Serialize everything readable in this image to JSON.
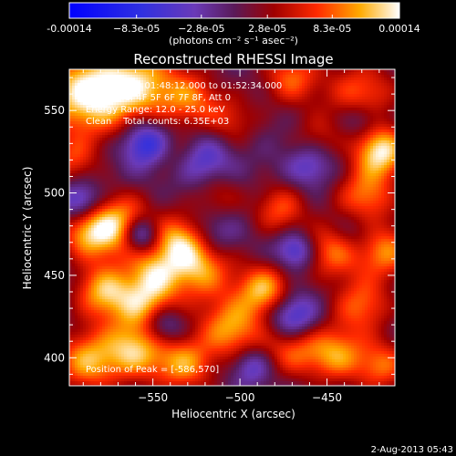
{
  "chart_data": {
    "type": "heatmap",
    "title": "Reconstructed RHESSI Image",
    "xlabel": "Heliocentric X (arcsec)",
    "ylabel": "Heliocentric Y (arcsec)",
    "xlim": [
      -598,
      -411
    ],
    "ylim": [
      383,
      575
    ],
    "x_ticks": [
      -550,
      -500,
      -450
    ],
    "y_ticks": [
      400,
      450,
      500,
      550
    ],
    "colorbar": {
      "unit_label": "(photons cm⁻² s⁻¹ asec⁻²)",
      "range": [
        -0.00014,
        0.00014
      ],
      "tick_labels": [
        "-0.00014",
        "−8.3e-05",
        "−2.8e-05",
        "2.8e-05",
        "8.3e-05",
        "0.00014"
      ],
      "tick_values": [
        -0.00014,
        -8.3e-05,
        -2.8e-05,
        2.8e-05,
        8.3e-05,
        0.00014
      ]
    },
    "annotations": {
      "time_range": "31-Jan-2010 01:48:12.000 to 01:52:34.000",
      "detectors": "Detectors: 4F 5F 6F 7F 8F, Att 0",
      "energy": "Energy Range: 12.0 - 25.0 keV",
      "clean": "Clean    Total counts: 6.35E+03",
      "peak": "Position of Peak = [-586,570]"
    },
    "peak": [
      -586,
      570
    ],
    "blobs": [
      [
        -588,
        560,
        18,
        1.0
      ],
      [
        -557,
        566,
        16,
        0.75
      ],
      [
        -528,
        557,
        12,
        0.55
      ],
      [
        -505,
        544,
        11,
        0.4
      ],
      [
        -470,
        570,
        12,
        0.6
      ],
      [
        -430,
        560,
        14,
        0.6
      ],
      [
        -419,
        525,
        11,
        0.95
      ],
      [
        -428,
        498,
        12,
        0.65
      ],
      [
        -417,
        465,
        12,
        0.7
      ],
      [
        -430,
        432,
        12,
        0.6
      ],
      [
        -418,
        395,
        11,
        0.6
      ],
      [
        -445,
        402,
        12,
        0.7
      ],
      [
        -447,
        465,
        12,
        0.65
      ],
      [
        -477,
        490,
        11,
        0.55
      ],
      [
        -486,
        441,
        11,
        0.8
      ],
      [
        -505,
        418,
        13,
        0.75
      ],
      [
        -470,
        405,
        12,
        0.55
      ],
      [
        -524,
        455,
        14,
        0.8
      ],
      [
        -536,
        472,
        11,
        0.65
      ],
      [
        -550,
        452,
        10,
        0.55
      ],
      [
        -553,
        432,
        12,
        0.75
      ],
      [
        -532,
        396,
        12,
        0.7
      ],
      [
        -560,
        405,
        13,
        0.8
      ],
      [
        -588,
        398,
        13,
        0.75
      ],
      [
        -578,
        440,
        12,
        0.8
      ],
      [
        -568,
        480,
        13,
        0.9
      ],
      [
        -588,
        475,
        11,
        0.65
      ],
      [
        -596,
        520,
        10,
        0.45
      ],
      [
        -540,
        525,
        10,
        0.3
      ],
      [
        -513,
        498,
        10,
        0.35
      ],
      [
        -455,
        535,
        10,
        0.3
      ],
      [
        -553,
        530,
        10,
        -0.7
      ],
      [
        -520,
        520,
        11,
        -0.4
      ],
      [
        -557,
        475,
        8,
        -0.8
      ],
      [
        -468,
        465,
        8,
        -0.55
      ],
      [
        -470,
        425,
        10,
        -0.6
      ],
      [
        -493,
        395,
        8,
        -0.4
      ],
      [
        -545,
        420,
        9,
        -0.6
      ],
      [
        -515,
        475,
        10,
        -0.35
      ],
      [
        -460,
        516,
        9,
        -0.35
      ],
      [
        -592,
        495,
        8,
        -0.5
      ],
      [
        -430,
        545,
        8,
        -0.35
      ],
      [
        -433,
        475,
        10,
        -0.3
      ]
    ]
  },
  "footer": {
    "date": "2-Aug-2013 05:43"
  }
}
